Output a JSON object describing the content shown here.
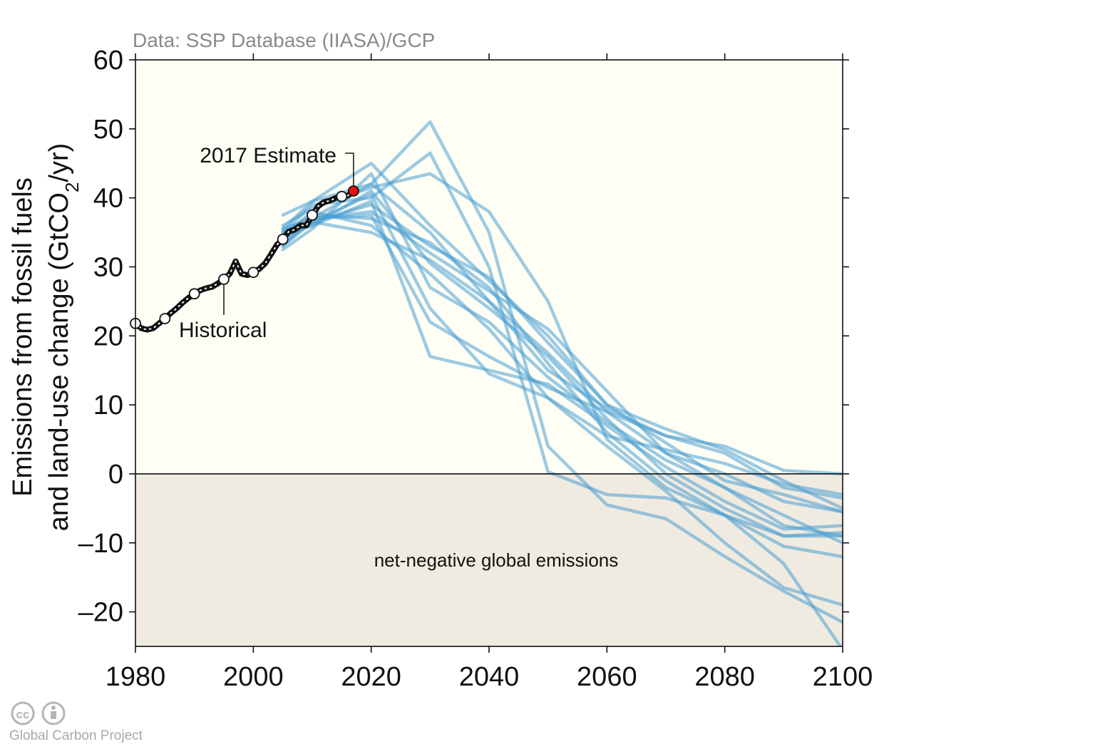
{
  "chart_data": {
    "type": "line",
    "source": "Data: SSP Database (IIASA)/GCP",
    "ylabel_line1": "Emissions from fossil fuels",
    "ylabel_line2_pre": "and land-use change (GtCO",
    "ylabel_line2_sub": "2",
    "ylabel_line2_post": "/yr)",
    "xlim": [
      1980,
      2100
    ],
    "ylim": [
      -25,
      60
    ],
    "x_ticks": [
      1980,
      2000,
      2020,
      2040,
      2060,
      2080,
      2100
    ],
    "y_ticks": [
      60,
      50,
      40,
      30,
      20,
      10,
      0,
      -10,
      -20
    ],
    "y_tick_labels": [
      "60",
      "50",
      "40",
      "30",
      "20",
      "10",
      "0",
      "–10",
      "–20"
    ],
    "region_label": "net-negative global emissions",
    "historical_label": "Historical",
    "estimate_label": "2017 Estimate",
    "estimate_point": {
      "x": 2017,
      "y": 41.0
    },
    "historical": {
      "x": [
        1980,
        1981,
        1982,
        1983,
        1984,
        1985,
        1986,
        1987,
        1988,
        1989,
        1990,
        1991,
        1992,
        1993,
        1994,
        1995,
        1996,
        1997,
        1998,
        1999,
        2000,
        2001,
        2002,
        2003,
        2004,
        2005,
        2006,
        2007,
        2008,
        2009,
        2010,
        2011,
        2012,
        2013,
        2014,
        2015,
        2016,
        2017
      ],
      "y": [
        21.8,
        21.1,
        20.9,
        21.1,
        21.8,
        22.5,
        23.3,
        24.0,
        24.8,
        25.5,
        26.1,
        26.6,
        26.9,
        27.1,
        27.6,
        28.2,
        29.0,
        30.8,
        29.0,
        28.8,
        29.2,
        29.7,
        30.5,
        31.8,
        33.2,
        34.0,
        35.1,
        35.4,
        36.0,
        36.0,
        37.5,
        38.8,
        39.4,
        39.6,
        40.0,
        40.2,
        40.3,
        41.0
      ]
    },
    "historical_markers": [
      1980,
      1985,
      1990,
      1995,
      2000,
      2005,
      2010,
      2015
    ],
    "scenario_color": "#4a9fd2",
    "historical_color": "#111111",
    "estimate_color": "#e8100f",
    "positive_fill": "#fefef5",
    "negative_fill": "#f0ebe0",
    "scenario_x": [
      2005,
      2010,
      2020,
      2030,
      2040,
      2050,
      2060,
      2070,
      2080,
      2090,
      2100
    ],
    "scenarios": [
      {
        "values": [
          35.5,
          39.5,
          42.0,
          51.0,
          35.0,
          4.0,
          -4.5,
          -6.5,
          -12.0,
          -17.0,
          -21.5
        ]
      },
      {
        "values": [
          35.0,
          39.0,
          40.0,
          46.5,
          30.0,
          0.3,
          -3.0,
          -3.5,
          -6.0,
          -9.0,
          -8.5
        ]
      },
      {
        "values": [
          36.0,
          38.5,
          41.5,
          43.5,
          38.0,
          25.0,
          5.0,
          -2.0,
          -6.0,
          -10.5,
          -12.0
        ]
      },
      {
        "values": [
          37.5,
          39.5,
          45.0,
          36.0,
          28.0,
          20.0,
          10.0,
          6.5,
          3.5,
          -1.0,
          -5.0
        ]
      },
      {
        "values": [
          33.0,
          37.0,
          42.0,
          35.0,
          25.0,
          15.0,
          9.5,
          5.5,
          4.0,
          0.5,
          0.0
        ]
      },
      {
        "values": [
          34.0,
          36.5,
          39.0,
          33.0,
          28.5,
          19.0,
          10.0,
          4.5,
          -1.0,
          -3.0,
          -5.5
        ]
      },
      {
        "values": [
          35.5,
          37.0,
          38.0,
          32.0,
          26.5,
          21.0,
          12.0,
          3.0,
          -2.0,
          -7.5,
          -9.0
        ]
      },
      {
        "values": [
          34.5,
          36.0,
          41.0,
          30.5,
          24.0,
          17.0,
          8.0,
          0.0,
          -5.0,
          -9.0,
          -9.0
        ]
      },
      {
        "values": [
          32.5,
          35.5,
          43.5,
          27.0,
          22.0,
          14.0,
          7.5,
          2.0,
          -2.0,
          -6.0,
          -10.0
        ]
      },
      {
        "values": [
          33.5,
          36.5,
          40.5,
          24.0,
          14.5,
          11.0,
          4.0,
          -2.5,
          -10.0,
          -16.5,
          -19.0
        ]
      },
      {
        "values": [
          34.0,
          37.0,
          37.5,
          22.0,
          17.0,
          12.5,
          9.0,
          5.5,
          3.0,
          -2.0,
          -3.5
        ]
      },
      {
        "values": [
          35.0,
          36.0,
          39.5,
          17.0,
          15.0,
          13.0,
          7.0,
          1.0,
          -4.0,
          -8.0,
          -7.5
        ]
      },
      {
        "values": [
          34.5,
          38.0,
          36.0,
          29.0,
          21.0,
          11.0,
          5.5,
          3.5,
          1.5,
          -1.5,
          -3.0
        ]
      },
      {
        "values": [
          35.0,
          37.5,
          37.0,
          33.5,
          27.0,
          16.0,
          6.0,
          -1.0,
          -6.0,
          -13.0,
          -25.5
        ]
      },
      {
        "values": [
          33.0,
          36.5,
          35.0,
          31.0,
          25.0,
          17.5,
          9.0,
          3.0,
          0.0,
          -4.0,
          -5.5
        ]
      }
    ]
  },
  "credit": {
    "cc_text": "cc",
    "text": "Global Carbon Project"
  }
}
